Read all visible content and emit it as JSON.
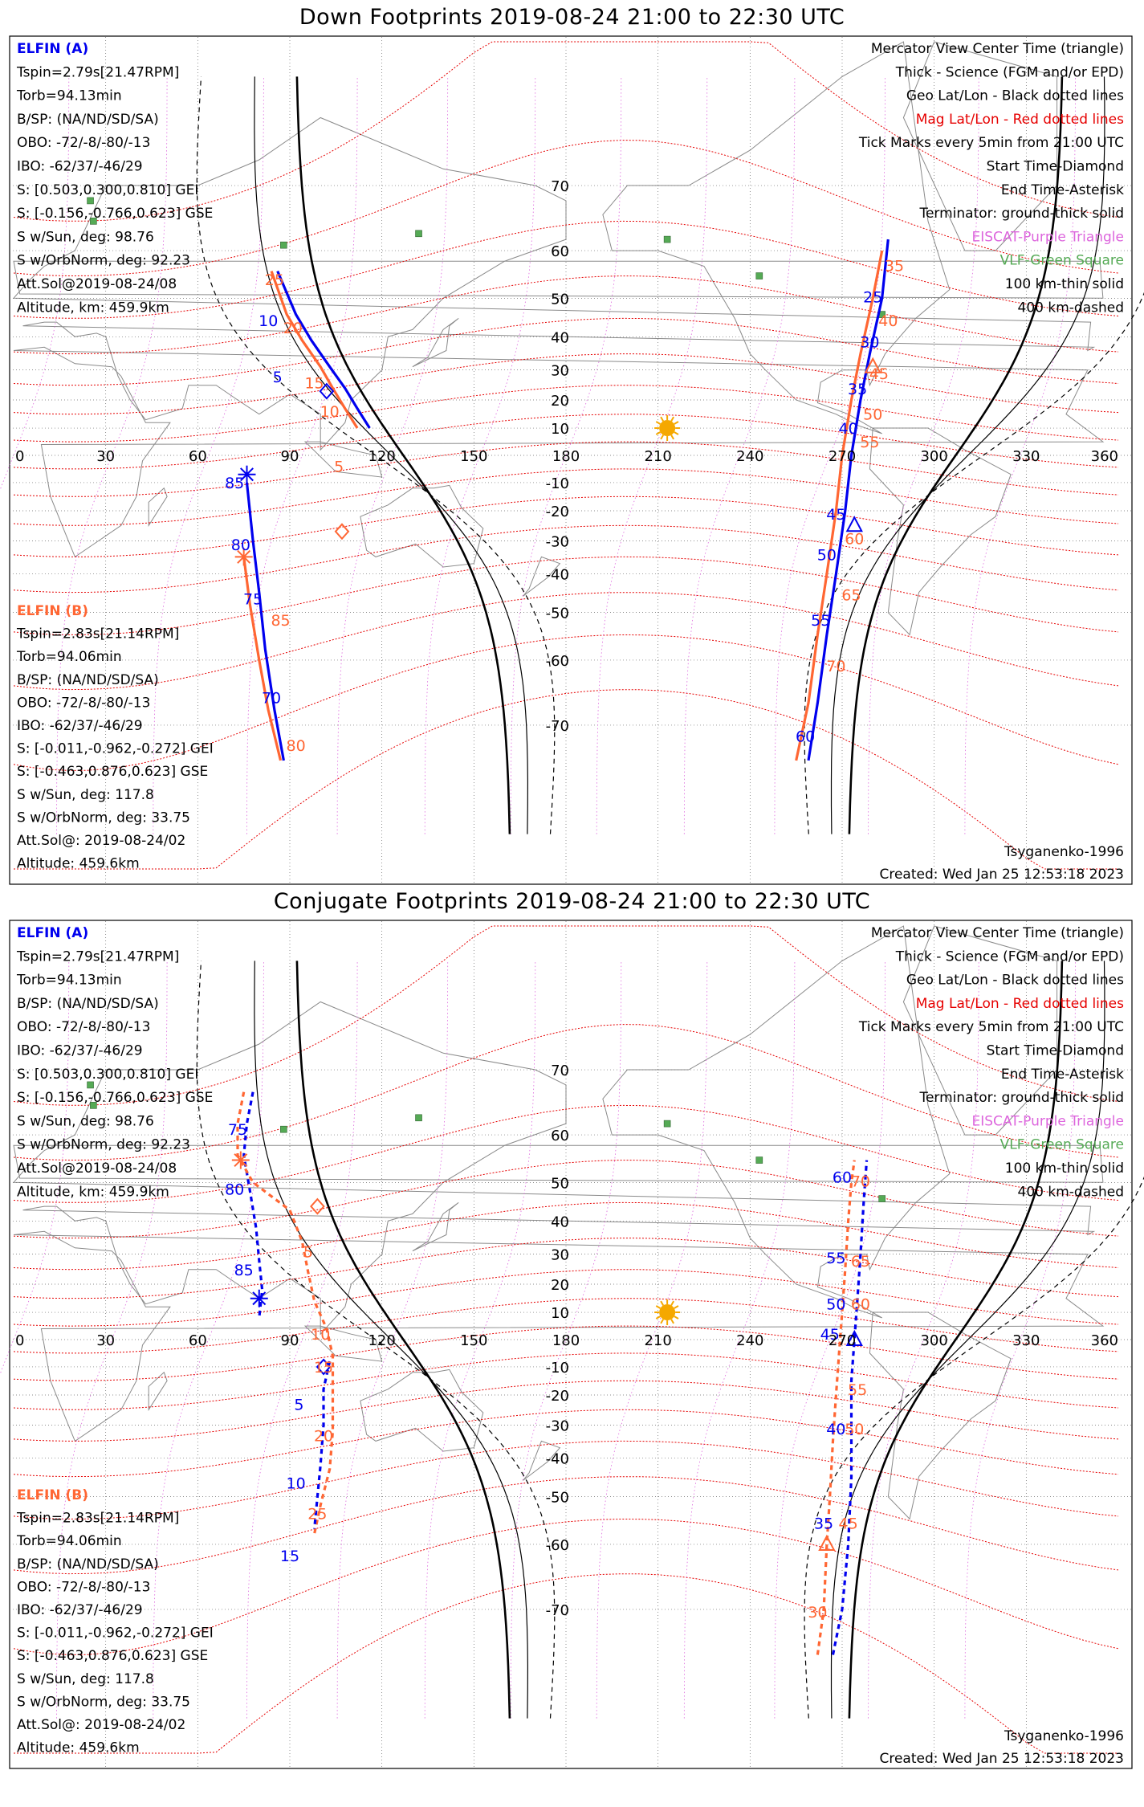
{
  "panels": [
    {
      "title": "Down Footprints 2019-08-24 21:00 to 22:30 UTC",
      "sc_a": [
        "ELFIN (A)",
        "Tspin=2.79s[21.47RPM]",
        "Torb=94.13min",
        "B/SP: (NA/ND/SD/SA)",
        "OBO: -72/-8/-80/-13",
        "IBO: -62/37/-46/29",
        "S: [0.503,0.300,0.810] GEI",
        "S: [-0.156,-0.766,0.623] GSE",
        "S w/Sun, deg: 98.76",
        "S w/OrbNorm, deg: 92.23",
        "Att.Sol@2019-08-24/08",
        "Altitude, km: 459.9km"
      ],
      "sc_b": [
        "ELFIN (B)",
        "Tspin=2.83s[21.14RPM]",
        "Torb=94.06min",
        "B/SP: (NA/ND/SD/SA)",
        "OBO: -72/-8/-80/-13",
        "IBO: -62/37/-46/29",
        "S: [-0.011,-0.962,-0.272] GEI",
        "S: [-0.463,0.876,0.623] GSE",
        "S w/Sun, deg: 117.8",
        "S w/OrbNorm, deg: 33.75",
        "Att.Sol@: 2019-08-24/02",
        "Altitude: 459.6km"
      ],
      "legend": [
        "Mercator View Center Time (triangle)",
        "Thick - Science (FGM and/or EPD)",
        "Geo Lat/Lon - Black dotted lines",
        "Mag Lat/Lon - Red dotted lines",
        "Tick Marks every 5min from 21:00 UTC",
        "Start Time-Diamond",
        "End Time-Asterisk",
        "Terminator: ground-thick solid",
        "EISCAT-Purple Triangle",
        "VLF-Green Square",
        "100 km-thin solid",
        "400 km-dashed"
      ],
      "model": "Tsyganenko-1996",
      "created": "Created: Wed Jan 25 12:53:18 2023",
      "tracks": [
        {
          "color": "#0000ee",
          "dash": false,
          "points": [
            [
              86,
              56
            ],
            [
              92,
              46
            ],
            [
              97,
              39
            ],
            [
              103,
              31
            ],
            [
              108,
              24
            ],
            [
              112,
              17
            ],
            [
              116,
              10
            ]
          ]
        },
        {
          "color": "#ff6633",
          "dash": false,
          "points": [
            [
              84,
              56
            ],
            [
              89,
              46
            ],
            [
              94,
              39
            ],
            [
              100,
              31
            ],
            [
              104,
              24
            ],
            [
              108,
              17
            ],
            [
              112,
              10
            ]
          ]
        },
        {
          "color": "#0000ee",
          "dash": false,
          "points": [
            [
              76,
              -10
            ],
            [
              78,
              -30
            ],
            [
              80,
              -45
            ],
            [
              82,
              -58
            ],
            [
              85,
              -68
            ],
            [
              88,
              -74
            ]
          ]
        },
        {
          "color": "#ff6633",
          "dash": false,
          "points": [
            [
              75,
              -35
            ],
            [
              77,
              -48
            ],
            [
              80,
              -60
            ],
            [
              83,
              -68
            ],
            [
              87,
              -74
            ]
          ]
        },
        {
          "color": "#0000ee",
          "dash": false,
          "points": [
            [
              259,
              -74
            ],
            [
              262,
              -67
            ],
            [
              265,
              -55
            ],
            [
              268,
              -40
            ],
            [
              271,
              -20
            ],
            [
              273,
              0
            ],
            [
              276,
              20
            ],
            [
              279,
              35
            ],
            [
              283,
              50
            ],
            [
              285,
              62
            ]
          ]
        },
        {
          "color": "#ff6633",
          "dash": false,
          "points": [
            [
              255,
              -74
            ],
            [
              259,
              -67
            ],
            [
              262,
              -55
            ],
            [
              265,
              -40
            ],
            [
              268,
              -20
            ],
            [
              270,
              0
            ],
            [
              273,
              20
            ],
            [
              276,
              35
            ],
            [
              280,
              50
            ],
            [
              283,
              60
            ]
          ]
        }
      ],
      "labels": [
        {
          "text": "25",
          "lon": 85,
          "lat": 53,
          "color": "#ff6633"
        },
        {
          "text": "10",
          "lon": 83,
          "lat": 43,
          "color": "#0000ee"
        },
        {
          "text": "20",
          "lon": 91,
          "lat": 41,
          "color": "#ff6633"
        },
        {
          "text": "5",
          "lon": 86,
          "lat": 26,
          "color": "#0000ee"
        },
        {
          "text": "15",
          "lon": 98,
          "lat": 24,
          "color": "#ff6633"
        },
        {
          "text": "10",
          "lon": 103,
          "lat": 14,
          "color": "#ff6633"
        },
        {
          "text": "5",
          "lon": 106,
          "lat": -6,
          "color": "#ff6633"
        },
        {
          "text": "85",
          "lon": 72,
          "lat": -12,
          "color": "#0000ee"
        },
        {
          "text": "80",
          "lon": 74,
          "lat": -33,
          "color": "#0000ee"
        },
        {
          "text": "75",
          "lon": 78,
          "lat": -48,
          "color": "#0000ee"
        },
        {
          "text": "85",
          "lon": 87,
          "lat": -53,
          "color": "#ff6633"
        },
        {
          "text": "70",
          "lon": 84,
          "lat": -67,
          "color": "#0000ee"
        },
        {
          "text": "80",
          "lon": 92,
          "lat": -73,
          "color": "#ff6633"
        },
        {
          "text": "35",
          "lon": 287,
          "lat": 56,
          "color": "#ff6633"
        },
        {
          "text": "25",
          "lon": 280,
          "lat": 49,
          "color": "#0000ee"
        },
        {
          "text": "40",
          "lon": 285,
          "lat": 43,
          "color": "#ff6633"
        },
        {
          "text": "30",
          "lon": 279,
          "lat": 37,
          "color": "#0000ee"
        },
        {
          "text": "45",
          "lon": 282,
          "lat": 27,
          "color": "#ff6633"
        },
        {
          "text": "35",
          "lon": 275,
          "lat": 22,
          "color": "#0000ee"
        },
        {
          "text": "50",
          "lon": 280,
          "lat": 13,
          "color": "#ff6633"
        },
        {
          "text": "40",
          "lon": 272,
          "lat": 8,
          "color": "#0000ee"
        },
        {
          "text": "55",
          "lon": 279,
          "lat": 3,
          "color": "#ff6633"
        },
        {
          "text": "45",
          "lon": 268,
          "lat": -23,
          "color": "#0000ee"
        },
        {
          "text": "60",
          "lon": 274,
          "lat": -31,
          "color": "#ff6633"
        },
        {
          "text": "50",
          "lon": 265,
          "lat": -36,
          "color": "#0000ee"
        },
        {
          "text": "65",
          "lon": 273,
          "lat": -47,
          "color": "#ff6633"
        },
        {
          "text": "55",
          "lon": 263,
          "lat": -53,
          "color": "#0000ee"
        },
        {
          "text": "70",
          "lon": 268,
          "lat": -62,
          "color": "#ff6633"
        },
        {
          "text": "60",
          "lon": 258,
          "lat": -72,
          "color": "#0000ee"
        }
      ],
      "markers": [
        {
          "kind": "diamond",
          "lon": 102,
          "lat": 23,
          "color": "#0000ee"
        },
        {
          "kind": "diamond",
          "lon": 107,
          "lat": -27,
          "color": "#ff6633"
        },
        {
          "kind": "asterisk",
          "lon": 76,
          "lat": -7,
          "color": "#0000ee"
        },
        {
          "kind": "asterisk",
          "lon": 75,
          "lat": -35,
          "color": "#ff6633"
        },
        {
          "kind": "triangle",
          "lon": 274,
          "lat": -25,
          "color": "#0000ee"
        },
        {
          "kind": "triangle",
          "lon": 280,
          "lat": 31,
          "color": "#ff6633"
        }
      ],
      "sun": {
        "lon": 213,
        "lat": 10,
        "color": "#f5a800"
      }
    },
    {
      "title": "Conjugate Footprints 2019-08-24 21:00 to 22:30 UTC",
      "sc_a": [
        "ELFIN (A)",
        "Tspin=2.79s[21.47RPM]",
        "Torb=94.13min",
        "B/SP: (NA/ND/SD/SA)",
        "OBO: -72/-8/-80/-13",
        "IBO: -62/37/-46/29",
        "S: [0.503,0.300,0.810] GEI",
        "S: [-0.156,-0.766,0.623] GSE",
        "S w/Sun, deg: 98.76",
        "S w/OrbNorm, deg: 92.23",
        "Att.Sol@2019-08-24/08",
        "Altitude, km: 459.9km"
      ],
      "sc_b": [
        "ELFIN (B)",
        "Tspin=2.83s[21.14RPM]",
        "Torb=94.06min",
        "B/SP: (NA/ND/SD/SA)",
        "OBO: -72/-8/-80/-13",
        "IBO: -62/37/-46/29",
        "S: [-0.011,-0.962,-0.272] GEI",
        "S: [-0.463,0.876,0.623] GSE",
        "S w/Sun, deg: 117.8",
        "S w/OrbNorm, deg: 33.75",
        "Att.Sol@: 2019-08-24/02",
        "Altitude: 459.6km"
      ],
      "legend": [
        "Mercator View Center Time (triangle)",
        "Thick - Science (FGM and/or EPD)",
        "Geo Lat/Lon - Black dotted lines",
        "Mag Lat/Lon - Red dotted lines",
        "Tick Marks every 5min from 21:00 UTC",
        "Start Time-Diamond",
        "End Time-Asterisk",
        "Terminator: ground-thick solid",
        "EISCAT-Purple Triangle",
        "VLF-Green Square",
        "100 km-thin solid",
        "400 km-dashed"
      ],
      "model": "Tsyganenko-1996",
      "created": "Created: Wed Jan 25 12:53:18 2023",
      "tracks": [
        {
          "color": "#0000ee",
          "dash": true,
          "points": [
            [
              78,
              67
            ],
            [
              76,
              62
            ],
            [
              75,
              56
            ],
            [
              77,
              48
            ],
            [
              79,
              38
            ],
            [
              80,
              28
            ],
            [
              81,
              18
            ],
            [
              80,
              8
            ]
          ]
        },
        {
          "color": "#ff6633",
          "dash": true,
          "points": [
            [
              75,
              67
            ],
            [
              73,
              62
            ],
            [
              73,
              56
            ],
            [
              78,
              50
            ],
            [
              90,
              43
            ],
            [
              94,
              34
            ],
            [
              96,
              24
            ],
            [
              98,
              14
            ],
            [
              102,
              4
            ],
            [
              104,
              -6
            ],
            [
              104,
              -20
            ],
            [
              104,
              -32
            ],
            [
              103,
              -43
            ],
            [
              100,
              -52
            ],
            [
              98,
              -58
            ]
          ]
        },
        {
          "color": "#0000ee",
          "dash": true,
          "points": [
            [
              103,
              -8
            ],
            [
              101,
              -18
            ],
            [
              101,
              -30
            ],
            [
              100,
              -42
            ],
            [
              99,
              -50
            ],
            [
              98,
              -57
            ]
          ]
        },
        {
          "color": "#ff6633",
          "dash": true,
          "points": [
            [
              262,
              -75
            ],
            [
              264,
              -70
            ],
            [
              265,
              -60
            ],
            [
              266,
              -50
            ],
            [
              267,
              -35
            ],
            [
              268,
              -20
            ],
            [
              269,
              -5
            ],
            [
              270,
              10
            ],
            [
              271,
              25
            ],
            [
              272,
              40
            ],
            [
              273,
              50
            ],
            [
              274,
              55
            ]
          ]
        },
        {
          "color": "#0000ee",
          "dash": true,
          "points": [
            [
              267,
              -75
            ],
            [
              270,
              -70
            ],
            [
              272,
              -60
            ],
            [
              273,
              -45
            ],
            [
              273,
              -30
            ],
            [
              273,
              -15
            ],
            [
              274,
              0
            ],
            [
              275,
              15
            ],
            [
              276,
              30
            ],
            [
              277,
              45
            ],
            [
              278,
              55
            ]
          ]
        }
      ],
      "labels": [
        {
          "text": "75",
          "lon": 73,
          "lat": 60,
          "color": "#0000ee"
        },
        {
          "text": "80",
          "lon": 72,
          "lat": 47,
          "color": "#0000ee"
        },
        {
          "text": "85",
          "lon": 75,
          "lat": 23,
          "color": "#0000ee"
        },
        {
          "text": "5",
          "lon": 96,
          "lat": 29,
          "color": "#ff6633"
        },
        {
          "text": "10",
          "lon": 100,
          "lat": 0,
          "color": "#ff6633"
        },
        {
          "text": "15",
          "lon": 101,
          "lat": -12,
          "color": "#ff6633"
        },
        {
          "text": "5",
          "lon": 93,
          "lat": -25,
          "color": "#0000ee"
        },
        {
          "text": "20",
          "lon": 101,
          "lat": -35,
          "color": "#ff6633"
        },
        {
          "text": "10",
          "lon": 92,
          "lat": -48,
          "color": "#0000ee"
        },
        {
          "text": "25",
          "lon": 99,
          "lat": -55,
          "color": "#ff6633"
        },
        {
          "text": "15",
          "lon": 90,
          "lat": -63,
          "color": "#0000ee"
        },
        {
          "text": "60",
          "lon": 270,
          "lat": 50,
          "color": "#0000ee"
        },
        {
          "text": "70",
          "lon": 276,
          "lat": 49,
          "color": "#ff6633"
        },
        {
          "text": "55",
          "lon": 268,
          "lat": 27,
          "color": "#0000ee"
        },
        {
          "text": "65",
          "lon": 276,
          "lat": 26,
          "color": "#ff6633"
        },
        {
          "text": "50",
          "lon": 268,
          "lat": 11,
          "color": "#0000ee"
        },
        {
          "text": "60",
          "lon": 276,
          "lat": 11,
          "color": "#ff6633"
        },
        {
          "text": "45",
          "lon": 266,
          "lat": 0,
          "color": "#0000ee"
        },
        {
          "text": "55",
          "lon": 275,
          "lat": -20,
          "color": "#ff6633"
        },
        {
          "text": "40",
          "lon": 268,
          "lat": -33,
          "color": "#0000ee"
        },
        {
          "text": "50",
          "lon": 274,
          "lat": -33,
          "color": "#ff6633"
        },
        {
          "text": "35",
          "lon": 264,
          "lat": -57,
          "color": "#0000ee"
        },
        {
          "text": "45",
          "lon": 272,
          "lat": -57,
          "color": "#ff6633"
        },
        {
          "text": "30",
          "lon": 262,
          "lat": -71,
          "color": "#ff6633"
        }
      ],
      "markers": [
        {
          "kind": "diamond",
          "lon": 99,
          "lat": 44,
          "color": "#ff6633"
        },
        {
          "kind": "diamond",
          "lon": 101,
          "lat": -10,
          "color": "#0000ee"
        },
        {
          "kind": "asterisk",
          "lon": 74,
          "lat": 55,
          "color": "#ff6633"
        },
        {
          "kind": "asterisk",
          "lon": 80,
          "lat": 15,
          "color": "#0000ee"
        },
        {
          "kind": "triangle",
          "lon": 274,
          "lat": 0,
          "color": "#0000ee"
        },
        {
          "kind": "triangle",
          "lon": 265,
          "lat": -60,
          "color": "#ff6633"
        }
      ],
      "sun": {
        "lon": 213,
        "lat": 10,
        "color": "#f5a800"
      }
    }
  ],
  "lon_ticks": [
    "0",
    "30",
    "60",
    "90",
    "120",
    "150",
    "180",
    "210",
    "240",
    "270",
    "300",
    "330",
    "360"
  ],
  "lat_ticks": [
    {
      "v": 70,
      "label": "70"
    },
    {
      "v": 60,
      "label": "60"
    },
    {
      "v": 50,
      "label": "50"
    },
    {
      "v": 40,
      "label": "40"
    },
    {
      "v": 30,
      "label": "30"
    },
    {
      "v": 20,
      "label": "20"
    },
    {
      "v": 10,
      "label": "10"
    },
    {
      "v": -10,
      "label": "-10"
    },
    {
      "v": -20,
      "label": "-20"
    },
    {
      "v": -30,
      "label": "-30"
    },
    {
      "v": -40,
      "label": "-40"
    },
    {
      "v": -50,
      "label": "-50"
    },
    {
      "v": -60,
      "label": "-60"
    },
    {
      "v": -70,
      "label": "-70"
    }
  ],
  "vlf_sites": [
    {
      "lon": 88,
      "lat": 61
    },
    {
      "lon": 25,
      "lat": 68
    },
    {
      "lon": 26,
      "lat": 65
    },
    {
      "lon": 132,
      "lat": 63
    },
    {
      "lon": 213,
      "lat": 62
    },
    {
      "lon": 243,
      "lat": 55
    },
    {
      "lon": 283,
      "lat": 46
    }
  ],
  "colors": {
    "sc_a": "#0000ee",
    "sc_b": "#ff6633",
    "mag_grid": "#e60000",
    "geo_grid": "#666666",
    "eiscat": "#dd66dd",
    "vlf": "#55aa55",
    "coast": "#8a8a8a"
  }
}
